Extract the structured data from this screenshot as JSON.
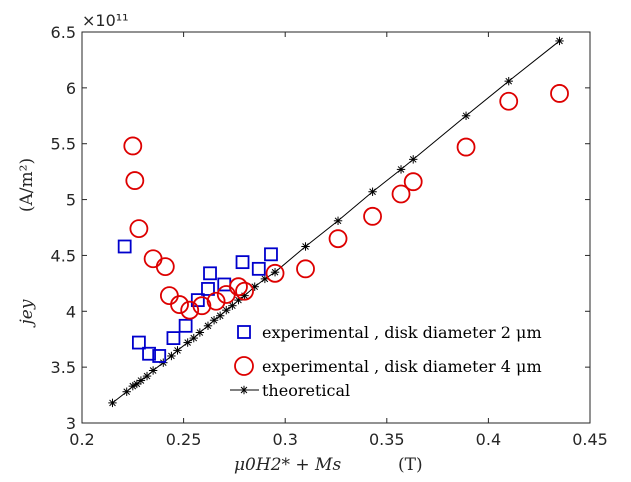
{
  "chart_data": {
    "type": "scatter",
    "title": "",
    "xlabel": "μ0H2* + Ms",
    "xlabel_unit": "(T)",
    "ylabel": "jey",
    "ylabel_unit": "(A/m²)",
    "y_exponent_label": "×10¹¹",
    "xlim": [
      0.2,
      0.45
    ],
    "ylim": [
      3.0,
      6.5
    ],
    "y_scale_factor": 100000000000.0,
    "xticks": [
      0.2,
      0.25,
      0.3,
      0.35,
      0.4,
      0.45
    ],
    "xtick_labels": [
      "0.2",
      "0.25",
      "0.3",
      "0.35",
      "0.4",
      "0.45"
    ],
    "yticks": [
      3,
      3.5,
      4,
      4.5,
      5,
      5.5,
      6,
      6.5
    ],
    "ytick_labels": [
      "3",
      "3.5",
      "4",
      "4.5",
      "5",
      "5.5",
      "6",
      "6.5"
    ],
    "grid": false,
    "legend_position": "bottom-right",
    "series": [
      {
        "name": "experimental , disk diameter 2 μm",
        "marker": "square",
        "color": "#0000cc",
        "x": [
          0.221,
          0.228,
          0.233,
          0.238,
          0.245,
          0.251,
          0.257,
          0.262,
          0.263,
          0.27,
          0.279,
          0.287,
          0.293
        ],
        "y": [
          4.58,
          3.72,
          3.62,
          3.6,
          3.76,
          3.87,
          4.1,
          4.2,
          4.34,
          4.24,
          4.44,
          4.38,
          4.51
        ]
      },
      {
        "name": "experimental , disk diameter 4 μm",
        "marker": "circle",
        "color": "#dd0000",
        "x": [
          0.225,
          0.226,
          0.228,
          0.235,
          0.241,
          0.243,
          0.248,
          0.253,
          0.259,
          0.266,
          0.271,
          0.277,
          0.28,
          0.295,
          0.31,
          0.326,
          0.343,
          0.357,
          0.363,
          0.389,
          0.41,
          0.435
        ],
        "y": [
          5.48,
          5.17,
          4.74,
          4.47,
          4.4,
          4.14,
          4.06,
          4.01,
          4.05,
          4.09,
          4.15,
          4.22,
          4.18,
          4.34,
          4.38,
          4.65,
          4.85,
          5.05,
          5.16,
          5.47,
          5.88,
          5.95
        ]
      },
      {
        "name": "theoretical",
        "marker": "asterisk-line",
        "color": "#000000",
        "x": [
          0.215,
          0.222,
          0.225,
          0.227,
          0.229,
          0.232,
          0.235,
          0.24,
          0.244,
          0.247,
          0.252,
          0.255,
          0.258,
          0.262,
          0.265,
          0.268,
          0.271,
          0.274,
          0.277,
          0.28,
          0.285,
          0.29,
          0.295,
          0.31,
          0.326,
          0.343,
          0.357,
          0.363,
          0.389,
          0.41,
          0.435
        ],
        "y": [
          3.18,
          3.28,
          3.33,
          3.35,
          3.38,
          3.42,
          3.47,
          3.54,
          3.6,
          3.65,
          3.72,
          3.76,
          3.81,
          3.87,
          3.92,
          3.96,
          4.01,
          4.05,
          4.1,
          4.14,
          4.22,
          4.29,
          4.35,
          4.58,
          4.81,
          5.07,
          5.27,
          5.36,
          5.75,
          6.06,
          6.42
        ]
      }
    ]
  }
}
